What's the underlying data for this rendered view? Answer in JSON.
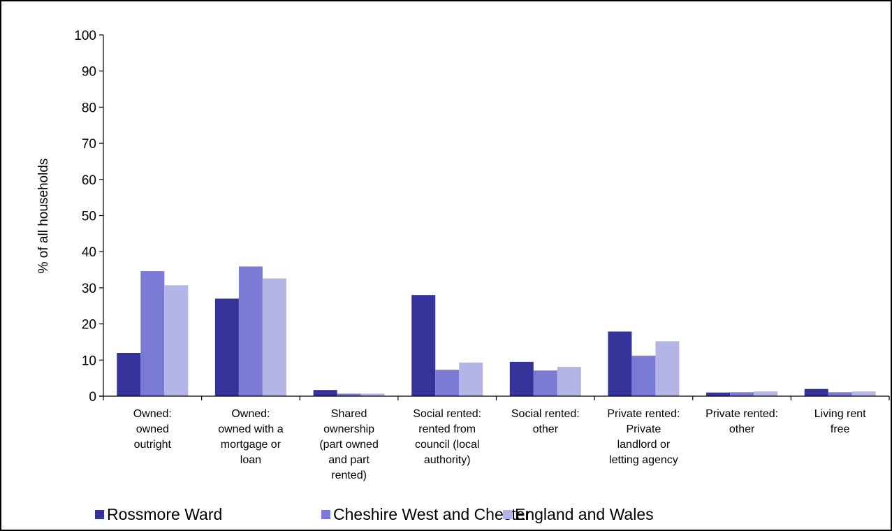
{
  "chart_data": {
    "type": "bar",
    "title": "",
    "xlabel": "",
    "ylabel": "% of all households",
    "ylim": [
      0,
      100
    ],
    "yticks": [
      0,
      10,
      20,
      30,
      40,
      50,
      60,
      70,
      80,
      90,
      100
    ],
    "grid": false,
    "legend_position": "bottom",
    "categories": [
      [
        "Owned:",
        "owned",
        "outright"
      ],
      [
        "Owned:",
        "owned with a",
        "mortgage or",
        "loan"
      ],
      [
        "Shared",
        "ownership",
        "(part owned",
        "and part",
        "rented)"
      ],
      [
        "Social rented:",
        "rented from",
        "council (local",
        "authority)"
      ],
      [
        "Social rented:",
        "other"
      ],
      [
        "Private rented:",
        "Private",
        "landlord or",
        "letting agency"
      ],
      [
        "Private rented:",
        "other"
      ],
      [
        "Living rent",
        "free"
      ]
    ],
    "series": [
      {
        "name": "Rossmore Ward",
        "color": "#333399",
        "values": [
          12.0,
          27.0,
          1.7,
          28.0,
          9.5,
          17.9,
          1.0,
          2.0
        ]
      },
      {
        "name": "Cheshire West and Chester",
        "color": "#7b7bd6",
        "values": [
          34.6,
          35.9,
          0.7,
          7.3,
          7.1,
          11.2,
          1.1,
          1.1
        ]
      },
      {
        "name": "England and Wales",
        "color": "#b4b4e6",
        "values": [
          30.7,
          32.6,
          0.7,
          9.3,
          8.1,
          15.2,
          1.3,
          1.3
        ]
      }
    ]
  }
}
